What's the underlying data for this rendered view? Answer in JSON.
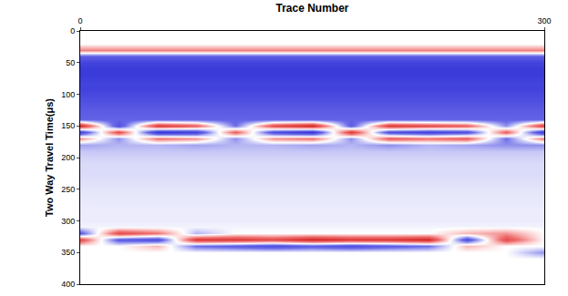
{
  "chart_data": {
    "type": "heatmap",
    "x_label": "Trace Number",
    "y_label": "Two Way Travel Time(μs)",
    "xlim": [
      0,
      300
    ],
    "xticks": [
      0,
      300
    ],
    "ylim": [
      0,
      400
    ],
    "yticks": [
      0,
      50,
      100,
      150,
      200,
      250,
      300,
      350,
      400
    ],
    "grid": false,
    "zlim": [
      -1,
      1
    ],
    "x": [
      0,
      25,
      50,
      75,
      100,
      125,
      150,
      175,
      200,
      225,
      250,
      275,
      300
    ],
    "y": [
      0,
      10,
      20,
      30,
      40,
      50,
      60,
      70,
      80,
      90,
      100,
      110,
      120,
      130,
      140,
      150,
      160,
      170,
      180,
      190,
      200,
      210,
      220,
      230,
      240,
      250,
      260,
      270,
      280,
      290,
      300,
      310,
      320,
      330,
      340,
      350,
      360,
      370,
      380,
      390,
      400
    ],
    "z": [
      [
        0,
        0,
        0,
        0,
        0,
        0,
        0,
        0,
        0,
        0,
        0,
        0,
        0
      ],
      [
        0,
        0,
        0,
        0,
        0,
        0,
        0,
        0,
        0,
        0,
        0,
        0,
        0
      ],
      [
        0,
        0,
        0,
        0,
        0,
        0,
        0,
        0,
        0,
        0,
        0,
        0,
        0
      ],
      [
        0.35,
        0.35,
        0.35,
        0.35,
        0.35,
        0.35,
        0.35,
        0.35,
        0.35,
        0.35,
        0.35,
        0.35,
        0.35
      ],
      [
        -0.5,
        -0.5,
        -0.5,
        -0.5,
        -0.5,
        -0.5,
        -0.5,
        -0.5,
        -0.5,
        -0.5,
        -0.5,
        -0.5,
        -0.5
      ],
      [
        -0.7,
        -0.7,
        -0.7,
        -0.7,
        -0.7,
        -0.7,
        -0.7,
        -0.7,
        -0.7,
        -0.7,
        -0.7,
        -0.7,
        -0.7
      ],
      [
        -0.75,
        -0.75,
        -0.75,
        -0.75,
        -0.75,
        -0.75,
        -0.75,
        -0.75,
        -0.75,
        -0.75,
        -0.75,
        -0.75,
        -0.75
      ],
      [
        -0.75,
        -0.75,
        -0.75,
        -0.75,
        -0.75,
        -0.75,
        -0.75,
        -0.75,
        -0.75,
        -0.75,
        -0.75,
        -0.75,
        -0.75
      ],
      [
        -0.7,
        -0.7,
        -0.7,
        -0.7,
        -0.7,
        -0.7,
        -0.7,
        -0.7,
        -0.7,
        -0.7,
        -0.7,
        -0.7,
        -0.7
      ],
      [
        -0.7,
        -0.7,
        -0.7,
        -0.7,
        -0.7,
        -0.7,
        -0.7,
        -0.7,
        -0.7,
        -0.7,
        -0.7,
        -0.7,
        -0.7
      ],
      [
        -0.65,
        -0.65,
        -0.65,
        -0.65,
        -0.65,
        -0.65,
        -0.65,
        -0.65,
        -0.65,
        -0.65,
        -0.65,
        -0.65,
        -0.65
      ],
      [
        -0.6,
        -0.6,
        -0.6,
        -0.6,
        -0.6,
        -0.6,
        -0.6,
        -0.6,
        -0.6,
        -0.6,
        -0.6,
        -0.6,
        -0.6
      ],
      [
        -0.55,
        -0.55,
        -0.55,
        -0.55,
        -0.55,
        -0.55,
        -0.55,
        -0.55,
        -0.55,
        -0.55,
        -0.55,
        -0.55,
        -0.55
      ],
      [
        -0.5,
        -0.5,
        -0.5,
        -0.5,
        -0.5,
        -0.5,
        -0.5,
        -0.5,
        -0.5,
        -0.5,
        -0.5,
        -0.5,
        -0.5
      ],
      [
        -0.45,
        -0.45,
        -0.45,
        -0.45,
        -0.45,
        -0.45,
        -0.45,
        -0.45,
        -0.45,
        -0.45,
        -0.45,
        -0.45,
        -0.45
      ],
      [
        0.8,
        -0.6,
        0.7,
        0.5,
        -0.4,
        0.6,
        0.8,
        -0.5,
        0.7,
        0.6,
        0.5,
        -0.3,
        0.7
      ],
      [
        -0.7,
        0.6,
        -0.8,
        -0.7,
        0.5,
        -0.6,
        -0.8,
        0.7,
        -0.6,
        -0.7,
        -0.6,
        0.5,
        -0.8
      ],
      [
        0.3,
        -0.3,
        0.4,
        0.3,
        -0.3,
        0.3,
        0.4,
        -0.3,
        0.5,
        0.4,
        0.5,
        -0.4,
        0.4
      ],
      [
        -0.25,
        -0.2,
        -0.2,
        -0.25,
        -0.2,
        -0.2,
        -0.25,
        -0.2,
        -0.3,
        -0.2,
        -0.25,
        -0.3,
        -0.3
      ],
      [
        -0.15,
        -0.15,
        -0.15,
        -0.15,
        -0.15,
        -0.15,
        -0.15,
        -0.15,
        -0.15,
        -0.15,
        -0.15,
        -0.15,
        -0.15
      ],
      [
        -0.12,
        -0.12,
        -0.12,
        -0.12,
        -0.12,
        -0.12,
        -0.12,
        -0.12,
        -0.12,
        -0.12,
        -0.12,
        -0.12,
        -0.12
      ],
      [
        -0.1,
        -0.1,
        -0.1,
        -0.1,
        -0.1,
        -0.1,
        -0.1,
        -0.1,
        -0.1,
        -0.1,
        -0.1,
        -0.1,
        -0.1
      ],
      [
        -0.1,
        -0.1,
        -0.1,
        -0.1,
        -0.1,
        -0.1,
        -0.1,
        -0.1,
        -0.1,
        -0.1,
        -0.1,
        -0.1,
        -0.1
      ],
      [
        -0.09,
        -0.09,
        -0.09,
        -0.09,
        -0.09,
        -0.09,
        -0.09,
        -0.09,
        -0.09,
        -0.09,
        -0.09,
        -0.09,
        -0.09
      ],
      [
        -0.08,
        -0.08,
        -0.08,
        -0.08,
        -0.08,
        -0.08,
        -0.08,
        -0.08,
        -0.08,
        -0.08,
        -0.08,
        -0.08,
        -0.08
      ],
      [
        -0.07,
        -0.07,
        -0.07,
        -0.07,
        -0.07,
        -0.07,
        -0.07,
        -0.07,
        -0.07,
        -0.07,
        -0.07,
        -0.07,
        -0.07
      ],
      [
        -0.06,
        -0.06,
        -0.06,
        -0.06,
        -0.06,
        -0.06,
        -0.06,
        -0.06,
        -0.06,
        -0.06,
        -0.06,
        -0.06,
        -0.06
      ],
      [
        -0.06,
        -0.06,
        -0.06,
        -0.06,
        -0.06,
        -0.06,
        -0.06,
        -0.06,
        -0.06,
        -0.06,
        -0.06,
        -0.06,
        -0.06
      ],
      [
        -0.05,
        -0.05,
        -0.05,
        -0.05,
        -0.05,
        -0.05,
        -0.05,
        -0.05,
        -0.05,
        -0.05,
        -0.05,
        -0.05,
        -0.05
      ],
      [
        -0.05,
        -0.05,
        -0.05,
        -0.05,
        -0.05,
        -0.05,
        -0.05,
        -0.05,
        -0.05,
        -0.05,
        -0.05,
        -0.05,
        -0.05
      ],
      [
        -0.05,
        -0.05,
        -0.05,
        -0.05,
        -0.05,
        -0.05,
        -0.05,
        -0.05,
        -0.05,
        -0.05,
        -0.05,
        -0.05,
        -0.05
      ],
      [
        -0.03,
        -0.03,
        -0.03,
        -0.03,
        -0.03,
        -0.03,
        -0.03,
        -0.03,
        -0.03,
        -0.03,
        -0.03,
        -0.03,
        -0.03
      ],
      [
        -0.5,
        0.6,
        0.4,
        -0.2,
        0,
        0,
        0,
        0,
        0,
        0,
        0.2,
        0.3,
        0
      ],
      [
        0.6,
        -0.5,
        -0.6,
        0.7,
        0.7,
        0.6,
        0.8,
        0.7,
        0.7,
        0.8,
        -0.6,
        0.6,
        0
      ],
      [
        0,
        0,
        0.2,
        -0.4,
        -0.5,
        -0.6,
        -0.5,
        -0.6,
        -0.5,
        -0.4,
        0.2,
        0,
        0
      ],
      [
        0,
        0,
        0,
        0,
        0,
        0,
        0,
        0,
        0,
        0,
        0,
        0,
        -0.3
      ],
      [
        0,
        0,
        0,
        0,
        0,
        0,
        0,
        0,
        0,
        0,
        0,
        0,
        0
      ],
      [
        0,
        0,
        0,
        0,
        0,
        0,
        0,
        0,
        0,
        0,
        0,
        0,
        0
      ],
      [
        0,
        0,
        0,
        0,
        0,
        0,
        0,
        0,
        0,
        0,
        0,
        0,
        0
      ],
      [
        0,
        0,
        0,
        0,
        0,
        0,
        0,
        0,
        0,
        0,
        0,
        0,
        0
      ],
      [
        0,
        0,
        0,
        0,
        0,
        0,
        0,
        0,
        0,
        0,
        0,
        0,
        0
      ]
    ]
  }
}
